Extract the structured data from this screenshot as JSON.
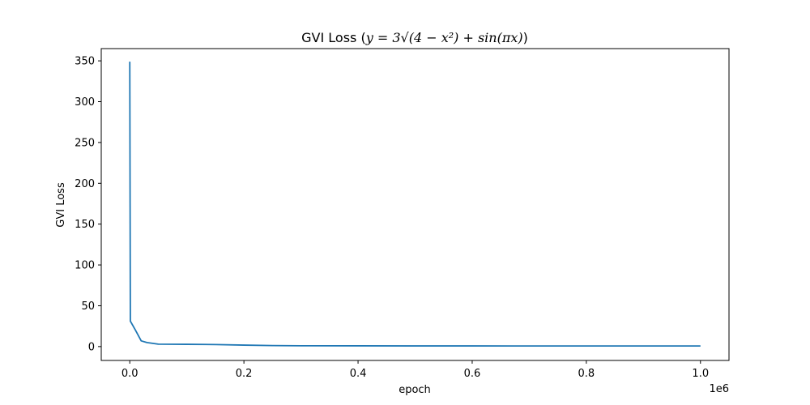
{
  "chart_data": {
    "type": "line",
    "title_prefix": "GVI Loss (",
    "title_formula": "y = 3√(4 − x²) + sin(πx)",
    "title_suffix": ")",
    "xlabel": "epoch",
    "ylabel": "GVI Loss",
    "x_offset_label": "1e6",
    "xlim": [
      -50000,
      1050000
    ],
    "ylim": [
      -17,
      365
    ],
    "xticks": [
      {
        "value": 0,
        "label": "0.0"
      },
      {
        "value": 200000,
        "label": "0.2"
      },
      {
        "value": 400000,
        "label": "0.4"
      },
      {
        "value": 600000,
        "label": "0.6"
      },
      {
        "value": 800000,
        "label": "0.8"
      },
      {
        "value": 1000000,
        "label": "1.0"
      }
    ],
    "yticks": [
      {
        "value": 0,
        "label": "0"
      },
      {
        "value": 50,
        "label": "50"
      },
      {
        "value": 100,
        "label": "100"
      },
      {
        "value": 150,
        "label": "150"
      },
      {
        "value": 200,
        "label": "200"
      },
      {
        "value": 250,
        "label": "250"
      },
      {
        "value": 300,
        "label": "300"
      },
      {
        "value": 350,
        "label": "350"
      }
    ],
    "grid": false,
    "series": [
      {
        "color": "#1f77b4",
        "x": [
          0,
          1000,
          2000,
          10000,
          20000,
          30000,
          50000,
          100000,
          150000,
          200000,
          250000,
          300000,
          400000,
          500000,
          600000,
          700000,
          800000,
          900000,
          1000000
        ],
        "y": [
          349,
          31,
          30,
          20,
          7,
          5,
          3,
          2.8,
          2.5,
          1.8,
          1.2,
          1.0,
          0.9,
          0.8,
          0.8,
          0.7,
          0.7,
          0.7,
          0.7
        ]
      }
    ]
  }
}
